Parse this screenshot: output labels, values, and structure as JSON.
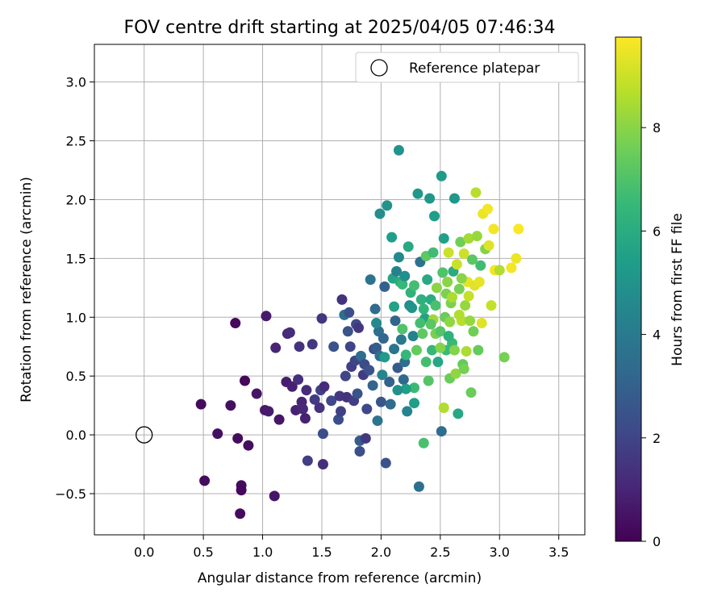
{
  "chart_data": {
    "type": "scatter",
    "title": "FOV centre drift starting at 2025/04/05 07:46:34",
    "xlabel": "Angular distance from reference (arcmin)",
    "ylabel": "Rotation from reference (arcmin)",
    "xlim": [
      -0.42,
      3.72
    ],
    "ylim": [
      -0.85,
      3.32
    ],
    "xticks": [
      0.0,
      0.5,
      1.0,
      1.5,
      2.0,
      2.5,
      3.0,
      3.5
    ],
    "xtick_labels": [
      "0.0",
      "0.5",
      "1.0",
      "1.5",
      "2.0",
      "2.5",
      "3.0",
      "3.5"
    ],
    "yticks": [
      -0.5,
      0.0,
      0.5,
      1.0,
      1.5,
      2.0,
      2.5,
      3.0
    ],
    "ytick_labels": [
      "−0.5",
      "0.0",
      "0.5",
      "1.0",
      "1.5",
      "2.0",
      "2.5",
      "3.0"
    ],
    "grid": true,
    "legend": {
      "position": "top-right",
      "entries": [
        "Reference platepar"
      ]
    },
    "reference_point": {
      "name": "Reference platepar",
      "x": 0.0,
      "y": 0.0
    },
    "colorbar": {
      "label": "Hours from first FF file",
      "colormap": "viridis",
      "range": [
        0,
        9.75
      ],
      "ticks": [
        0,
        2,
        4,
        6,
        8
      ],
      "tick_labels": [
        "0",
        "2",
        "4",
        "6",
        "8"
      ]
    },
    "colormap_stops": [
      "#440154",
      "#482878",
      "#3e4a89",
      "#31688e",
      "#26828e",
      "#1f9e89",
      "#35b779",
      "#6ece58",
      "#b5de2b",
      "#fde725"
    ],
    "points": [
      [
        0.77,
        0.95,
        0.2
      ],
      [
        0.48,
        0.26,
        0.3
      ],
      [
        0.51,
        -0.39,
        0.3
      ],
      [
        0.62,
        0.01,
        0.4
      ],
      [
        0.73,
        0.25,
        0.4
      ],
      [
        0.79,
        -0.03,
        0.3
      ],
      [
        0.82,
        -0.43,
        0.3
      ],
      [
        0.82,
        -0.47,
        0.2
      ],
      [
        0.81,
        -0.67,
        0.3
      ],
      [
        0.85,
        0.46,
        0.2
      ],
      [
        0.88,
        -0.09,
        0.4
      ],
      [
        0.95,
        0.35,
        0.5
      ],
      [
        1.03,
        1.01,
        0.7
      ],
      [
        1.05,
        0.2,
        0.8
      ],
      [
        1.02,
        0.21,
        0.7
      ],
      [
        1.1,
        -0.52,
        0.6
      ],
      [
        1.11,
        0.74,
        1.0
      ],
      [
        1.14,
        0.13,
        0.6
      ],
      [
        1.2,
        0.45,
        0.8
      ],
      [
        1.21,
        0.86,
        1.1
      ],
      [
        1.23,
        0.87,
        1.2
      ],
      [
        1.25,
        0.41,
        0.9
      ],
      [
        1.28,
        0.21,
        0.9
      ],
      [
        1.3,
        0.47,
        1.3
      ],
      [
        1.31,
        0.75,
        1.4
      ],
      [
        1.33,
        0.28,
        1.0
      ],
      [
        1.34,
        0.22,
        1.1
      ],
      [
        1.36,
        0.14,
        0.9
      ],
      [
        1.37,
        0.38,
        1.2
      ],
      [
        1.38,
        -0.22,
        1.8
      ],
      [
        1.42,
        0.77,
        1.6
      ],
      [
        1.44,
        0.3,
        1.7
      ],
      [
        1.48,
        0.23,
        1.4
      ],
      [
        1.49,
        0.38,
        1.9
      ],
      [
        1.5,
        0.99,
        1.5
      ],
      [
        1.51,
        -0.25,
        1.3
      ],
      [
        1.52,
        0.41,
        1.2
      ],
      [
        1.51,
        0.01,
        2.3
      ],
      [
        1.58,
        0.29,
        2.1
      ],
      [
        1.6,
        0.75,
        2.5
      ],
      [
        1.64,
        0.13,
        2.3
      ],
      [
        1.65,
        0.33,
        1.6
      ],
      [
        1.66,
        0.2,
        1.9
      ],
      [
        1.67,
        1.15,
        1.4
      ],
      [
        1.69,
        1.02,
        3.6
      ],
      [
        1.7,
        0.5,
        2.0
      ],
      [
        1.71,
        0.32,
        1.4
      ],
      [
        1.72,
        0.88,
        2.5
      ],
      [
        1.73,
        1.04,
        2.4
      ],
      [
        1.74,
        0.75,
        2.0
      ],
      [
        1.75,
        0.58,
        1.8
      ],
      [
        1.77,
        0.29,
        1.8
      ],
      [
        1.78,
        0.63,
        2.0
      ],
      [
        1.79,
        0.94,
        2.2
      ],
      [
        1.8,
        0.35,
        2.5
      ],
      [
        1.81,
        0.91,
        1.6
      ],
      [
        1.82,
        -0.05,
        2.8
      ],
      [
        1.82,
        -0.14,
        2.4
      ],
      [
        1.83,
        0.67,
        3.4
      ],
      [
        1.85,
        0.51,
        1.7
      ],
      [
        1.86,
        0.6,
        2.2
      ],
      [
        1.87,
        -0.03,
        1.6
      ],
      [
        1.88,
        0.22,
        2.1
      ],
      [
        1.9,
        0.55,
        2.5
      ],
      [
        1.91,
        1.32,
        3.7
      ],
      [
        1.93,
        0.42,
        3.1
      ],
      [
        1.94,
        0.73,
        2.2
      ],
      [
        1.95,
        1.07,
        3.4
      ],
      [
        1.96,
        0.74,
        2.8
      ],
      [
        1.97,
        0.12,
        3.8
      ],
      [
        1.98,
        0.88,
        3.6
      ],
      [
        1.99,
        0.67,
        3.5
      ],
      [
        1.99,
        1.88,
        4.8
      ],
      [
        2.0,
        0.28,
        2.6
      ],
      [
        2.02,
        0.82,
        3.2
      ],
      [
        2.03,
        1.26,
        3.0
      ],
      [
        2.04,
        -0.24,
        2.5
      ],
      [
        2.05,
        1.95,
        5.0
      ],
      [
        2.07,
        0.45,
        3.0
      ],
      [
        2.08,
        0.26,
        3.4
      ],
      [
        2.09,
        1.68,
        5.4
      ],
      [
        2.1,
        1.33,
        5.7
      ],
      [
        2.11,
        0.73,
        3.8
      ],
      [
        2.12,
        0.97,
        3.1
      ],
      [
        2.13,
        1.39,
        4.3
      ],
      [
        2.14,
        0.57,
        2.7
      ],
      [
        2.15,
        1.51,
        4.6
      ],
      [
        2.15,
        2.42,
        5.0
      ],
      [
        2.16,
        1.3,
        6.0
      ],
      [
        2.17,
        0.81,
        3.9
      ],
      [
        2.18,
        1.28,
        6.5
      ],
      [
        2.18,
        0.9,
        7.0
      ],
      [
        2.19,
        0.47,
        3.3
      ],
      [
        2.2,
        1.35,
        4.8
      ],
      [
        2.2,
        0.62,
        3.6
      ],
      [
        2.21,
        0.68,
        6.5
      ],
      [
        2.22,
        0.2,
        4.4
      ],
      [
        2.23,
        1.6,
        5.9
      ],
      [
        2.24,
        1.1,
        4.7
      ],
      [
        2.25,
        1.21,
        6.3
      ],
      [
        2.26,
        1.08,
        5.0
      ],
      [
        2.27,
        0.84,
        4.3
      ],
      [
        2.28,
        0.27,
        5.4
      ],
      [
        2.3,
        0.72,
        7.4
      ],
      [
        2.31,
        2.05,
        5.2
      ],
      [
        2.32,
        -0.44,
        3.6
      ],
      [
        2.33,
        1.47,
        3.7
      ],
      [
        2.34,
        1.15,
        6.2
      ],
      [
        2.35,
        0.86,
        7.3
      ],
      [
        2.36,
        -0.07,
        6.9
      ],
      [
        2.37,
        0.99,
        5.6
      ],
      [
        2.38,
        1.52,
        7.3
      ],
      [
        2.39,
        1.32,
        5.9
      ],
      [
        2.4,
        0.46,
        7.1
      ],
      [
        2.41,
        2.01,
        5.1
      ],
      [
        2.42,
        1.15,
        6.0
      ],
      [
        2.43,
        0.72,
        6.5
      ],
      [
        2.44,
        1.55,
        6.7
      ],
      [
        2.45,
        1.86,
        5.4
      ],
      [
        2.46,
        0.86,
        7.7
      ],
      [
        2.47,
        1.25,
        8.0
      ],
      [
        2.48,
        0.62,
        5.8
      ],
      [
        2.5,
        0.88,
        7.1
      ],
      [
        2.51,
        0.03,
        3.5
      ],
      [
        2.51,
        2.2,
        5.3
      ],
      [
        2.52,
        1.38,
        7.0
      ],
      [
        2.53,
        0.23,
        8.6
      ],
      [
        2.53,
        1.67,
        5.5
      ],
      [
        2.54,
        1.0,
        7.5
      ],
      [
        2.55,
        0.72,
        6.6
      ],
      [
        2.56,
        1.3,
        8.0
      ],
      [
        2.57,
        1.55,
        9.0
      ],
      [
        2.58,
        0.48,
        7.5
      ],
      [
        2.59,
        1.12,
        7.8
      ],
      [
        2.6,
        0.78,
        6.6
      ],
      [
        2.61,
        1.39,
        6.0
      ],
      [
        2.62,
        2.01,
        5.2
      ],
      [
        2.63,
        0.52,
        8.1
      ],
      [
        2.64,
        1.45,
        9.0
      ],
      [
        2.65,
        0.18,
        5.8
      ],
      [
        2.66,
        1.24,
        7.7
      ],
      [
        2.67,
        1.64,
        7.6
      ],
      [
        2.68,
        0.97,
        8.7
      ],
      [
        2.69,
        0.6,
        7.4
      ],
      [
        2.7,
        1.54,
        9.0
      ],
      [
        2.71,
        1.1,
        8.2
      ],
      [
        2.72,
        0.71,
        8.5
      ],
      [
        2.73,
        1.3,
        9.4
      ],
      [
        2.74,
        1.67,
        8.4
      ],
      [
        2.75,
        0.97,
        8.2
      ],
      [
        2.76,
        0.36,
        7.5
      ],
      [
        2.77,
        1.49,
        7.2
      ],
      [
        2.78,
        0.88,
        7.6
      ],
      [
        2.79,
        1.27,
        9.3
      ],
      [
        2.8,
        2.06,
        8.7
      ],
      [
        2.81,
        1.69,
        8.2
      ],
      [
        2.82,
        0.72,
        7.4
      ],
      [
        2.83,
        1.3,
        9.4
      ],
      [
        2.84,
        1.44,
        6.7
      ],
      [
        2.85,
        0.95,
        9.3
      ],
      [
        2.86,
        1.88,
        9.5
      ],
      [
        2.88,
        1.58,
        7.9
      ],
      [
        2.9,
        1.92,
        9.6
      ],
      [
        2.91,
        1.61,
        9.3
      ],
      [
        2.93,
        1.1,
        8.9
      ],
      [
        2.95,
        1.75,
        9.6
      ],
      [
        2.96,
        1.4,
        9.6
      ],
      [
        3.0,
        1.4,
        8.6
      ],
      [
        3.04,
        0.66,
        7.7
      ],
      [
        3.1,
        1.42,
        9.6
      ],
      [
        3.14,
        1.5,
        9.5
      ],
      [
        3.16,
        1.75,
        9.7
      ],
      [
        2.28,
        0.4,
        6.6
      ],
      [
        2.44,
        0.98,
        8.3
      ],
      [
        2.58,
        0.96,
        8.1
      ],
      [
        2.62,
        0.72,
        7.9
      ],
      [
        2.66,
        1.02,
        8.6
      ],
      [
        2.7,
        0.56,
        7.7
      ],
      [
        2.74,
        1.18,
        8.9
      ],
      [
        2.38,
        0.62,
        6.8
      ],
      [
        2.5,
        0.74,
        7.9
      ],
      [
        2.55,
        1.2,
        7.8
      ],
      [
        2.46,
        1.1,
        6.9
      ],
      [
        2.6,
        1.17,
        8.5
      ],
      [
        2.68,
        1.33,
        8.0
      ],
      [
        2.42,
        0.94,
        7.2
      ],
      [
        2.57,
        0.84,
        6.2
      ],
      [
        2.36,
        1.07,
        6.4
      ],
      [
        2.21,
        0.39,
        5.4
      ],
      [
        2.28,
        1.27,
        6.8
      ],
      [
        2.33,
        0.95,
        6.8
      ],
      [
        2.11,
        1.09,
        5.6
      ],
      [
        2.03,
        0.66,
        5.3
      ],
      [
        2.14,
        0.38,
        4.9
      ],
      [
        2.01,
        0.51,
        4.4
      ],
      [
        1.96,
        0.95,
        4.6
      ]
    ]
  }
}
